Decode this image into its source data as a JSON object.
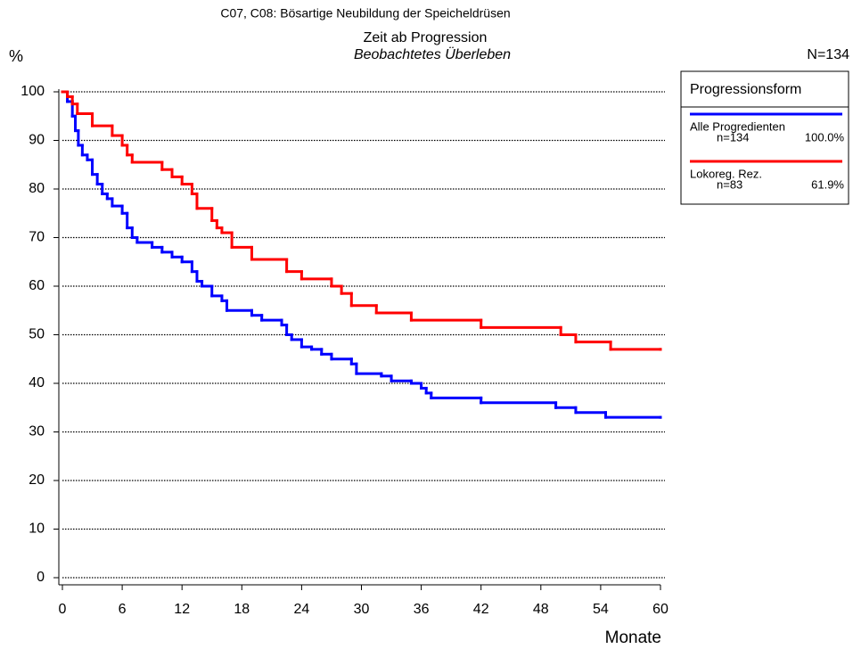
{
  "chart_data": {
    "type": "step",
    "title": "C07, C08: Bösartige Neubildung der Speicheldrüsen",
    "subtitle": "Zeit ab Progression",
    "caption": "Beobachtetes Überleben",
    "y_label": "%",
    "x_label": "Monate",
    "total_label": "N=134",
    "legend_title": "Progressionsform",
    "xlim": [
      0,
      60
    ],
    "xticks": [
      0,
      6,
      12,
      18,
      24,
      30,
      36,
      42,
      48,
      54,
      60
    ],
    "ylim": [
      0,
      100
    ],
    "yticks": [
      0,
      10,
      20,
      30,
      40,
      50,
      60,
      70,
      80,
      90,
      100
    ],
    "grid": true,
    "series": [
      {
        "name": "Alle Progredienten",
        "color": "#0000ff",
        "count_label": "n=134",
        "share_label": "100.0%",
        "x": [
          0,
          0.5,
          1,
          1.3,
          1.6,
          2,
          2.5,
          3,
          3.5,
          4,
          4.5,
          5,
          6,
          6.5,
          7,
          7.5,
          9,
          10,
          11,
          12,
          13,
          13.5,
          14,
          15,
          16,
          16.5,
          19,
          20,
          22,
          22.5,
          23,
          24,
          25,
          26,
          27,
          29,
          29.5,
          32,
          33,
          35,
          36,
          36.5,
          37,
          42,
          49.5,
          51.5,
          54.5,
          60
        ],
        "values": [
          100,
          98,
          95,
          92,
          89,
          87,
          86,
          83,
          81,
          79,
          78,
          76.5,
          75,
          72,
          70,
          69,
          68,
          67,
          66,
          65,
          63,
          61,
          60,
          58,
          57,
          55,
          54,
          53,
          52,
          50,
          49,
          47.5,
          47,
          46,
          45,
          44,
          42,
          41.5,
          40.5,
          40,
          39,
          38,
          37,
          36,
          35,
          34,
          33,
          33
        ]
      },
      {
        "name": "Lokoreg. Rez.",
        "color": "#ff0000",
        "count_label": "n=83",
        "share_label": "61.9%",
        "x": [
          0,
          0.5,
          1,
          1.5,
          3,
          5,
          6,
          6.5,
          7,
          10,
          11,
          12,
          13,
          13.5,
          15,
          15.5,
          16,
          17,
          19,
          22.5,
          24,
          27,
          28,
          29,
          31.5,
          35,
          42,
          50,
          51.5,
          55,
          60
        ],
        "values": [
          100,
          99,
          97.5,
          95.5,
          93,
          91,
          89,
          87,
          85.5,
          84,
          82.5,
          81,
          79,
          76,
          73.5,
          72,
          71,
          68,
          65.5,
          63,
          61.5,
          60,
          58.5,
          56,
          54.5,
          53,
          51.5,
          50,
          48.5,
          47,
          47
        ]
      }
    ]
  }
}
